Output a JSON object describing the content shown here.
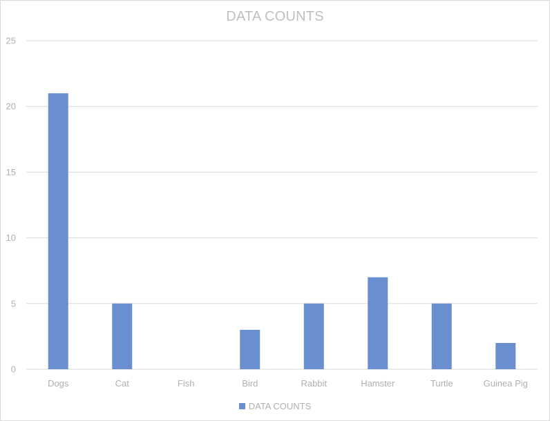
{
  "chart_data": {
    "type": "bar",
    "title": "DATA COUNTS",
    "categories": [
      "Dogs",
      "Cat",
      "Fish",
      "Bird",
      "Rabbit",
      "Hamster",
      "Turtle",
      "Guinea Pig"
    ],
    "series": [
      {
        "name": "DATA COUNTS",
        "values": [
          21,
          5,
          0,
          3,
          5,
          7,
          5,
          2
        ],
        "color": "#6a8fd1"
      }
    ],
    "ylim": [
      0,
      25
    ],
    "yticks": [
      0,
      5,
      10,
      15,
      20,
      25
    ],
    "grid": true,
    "legend_position": "bottom"
  }
}
